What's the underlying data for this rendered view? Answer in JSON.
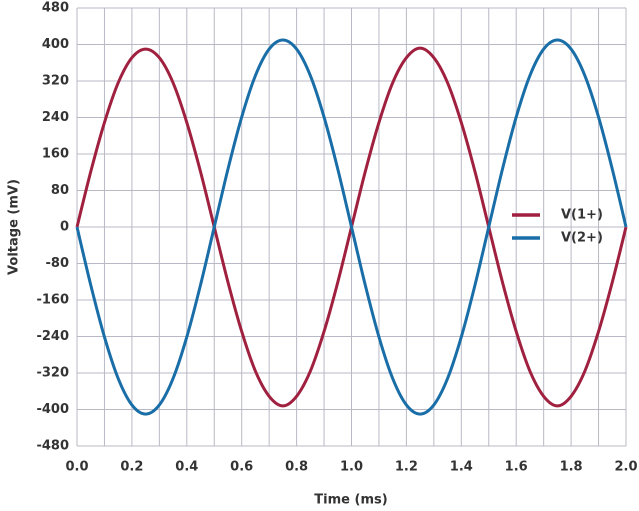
{
  "chart_data": {
    "type": "line",
    "xlabel": "Time (ms)",
    "ylabel": "Voltage (mV)",
    "x": [
      0,
      0.05,
      0.1,
      0.15,
      0.2,
      0.25,
      0.3,
      0.35,
      0.4,
      0.45,
      0.5,
      0.55,
      0.6,
      0.65,
      0.7,
      0.75,
      0.8,
      0.85,
      0.9,
      0.95,
      1.0,
      1.05,
      1.1,
      1.15,
      1.2,
      1.25,
      1.3,
      1.35,
      1.4,
      1.45,
      1.5,
      1.55,
      1.6,
      1.65,
      1.7,
      1.75,
      1.8,
      1.85,
      1.9,
      1.95,
      2.0
    ],
    "series": [
      {
        "name": "V(1+)",
        "color": "#a0203f",
        "values": [
          0,
          121,
          229,
          316,
          371,
          390,
          371,
          316,
          229,
          121,
          0,
          -121,
          -229,
          -316,
          -371,
          -392,
          -371,
          -316,
          -229,
          -121,
          0,
          121,
          229,
          316,
          371,
          392,
          371,
          316,
          229,
          121,
          0,
          -121,
          -229,
          -316,
          -371,
          -392,
          -371,
          -316,
          -229,
          -121,
          0
        ]
      },
      {
        "name": "V(2+)",
        "color": "#1a6ea8",
        "values": [
          0,
          -127,
          -241,
          -332,
          -390,
          -410,
          -390,
          -332,
          -241,
          -127,
          0,
          127,
          241,
          332,
          390,
          410,
          390,
          332,
          241,
          127,
          0,
          -127,
          -241,
          -332,
          -390,
          -410,
          -390,
          -332,
          -241,
          -127,
          0,
          127,
          241,
          332,
          390,
          410,
          390,
          332,
          241,
          127,
          0
        ]
      }
    ],
    "xlim": [
      0,
      2
    ],
    "ylim": [
      -480,
      480
    ],
    "xticks": [
      {
        "value": 0,
        "label": "0.0"
      },
      0.2,
      0.4,
      0.6,
      0.8,
      {
        "value": 1,
        "label": "1.0"
      },
      1.2,
      1.4,
      1.6,
      1.8,
      {
        "value": 2,
        "label": "2.0"
      }
    ],
    "xgrid": [
      0.1,
      0.3,
      0.5,
      0.7,
      0.9,
      1.1,
      1.3,
      1.5,
      1.7,
      1.9
    ],
    "yticks": [
      -480,
      -400,
      -320,
      -240,
      -160,
      -80,
      0,
      80,
      160,
      240,
      320,
      400,
      480
    ],
    "grid": true
  }
}
